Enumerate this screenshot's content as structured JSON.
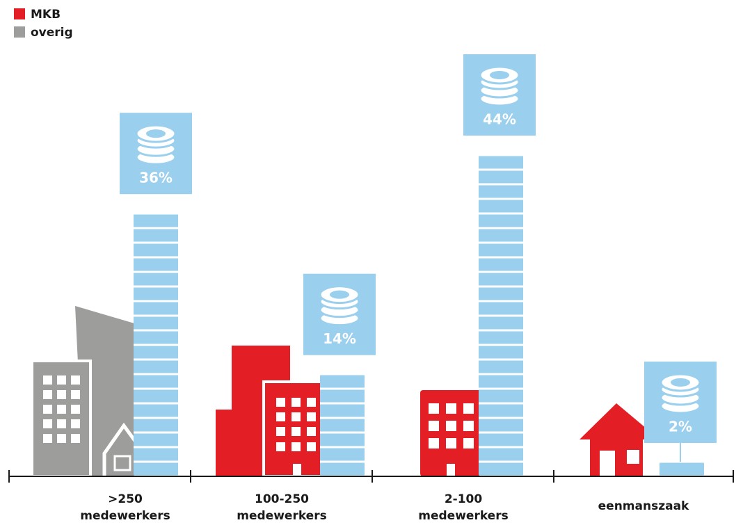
{
  "chart_data": {
    "type": "coin-tower",
    "legend": [
      {
        "name": "MKB",
        "color": "#e31e24"
      },
      {
        "name": "overig",
        "color": "#9d9d9c"
      }
    ],
    "categories": [
      ">250 medewerkers",
      "100-250 medewerkers",
      "2-100 medewerkers",
      "eenmanszaak"
    ],
    "values": [
      36,
      14,
      44,
      2
    ],
    "value_labels": [
      "36%",
      "14%",
      "44%",
      "2%"
    ],
    "building_colors": [
      "#9d9d9c",
      "#e31e24",
      "#e31e24",
      "#e31e24"
    ],
    "color": "#9acfee",
    "ylim": [
      0,
      44
    ]
  }
}
